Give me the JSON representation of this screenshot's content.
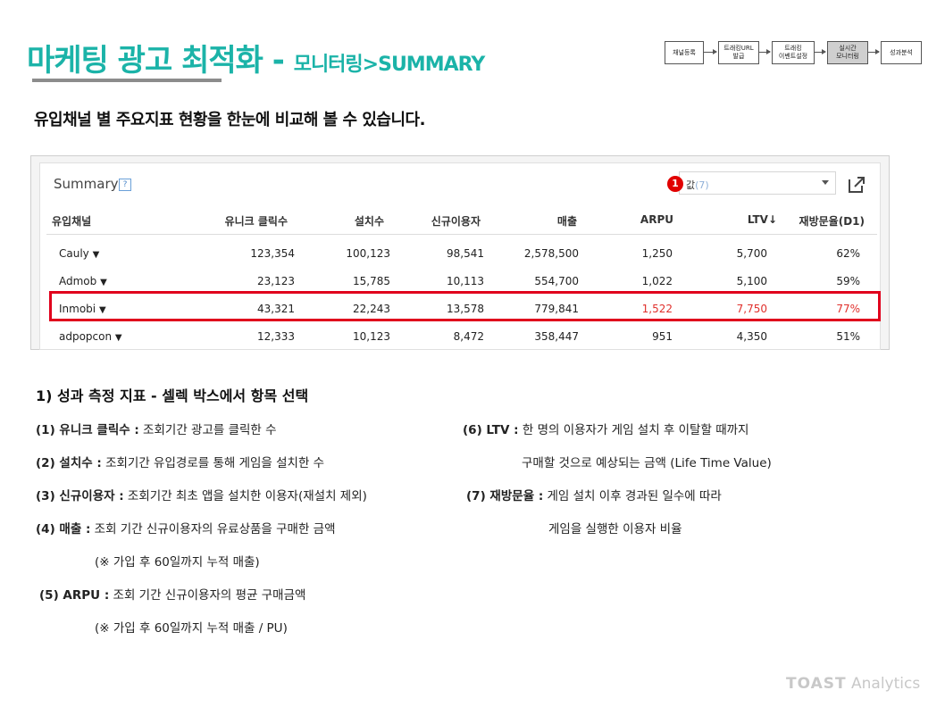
{
  "page": {
    "title_main": "마케팅 광고 최적화 - ",
    "title_sub": "모니터링>SUMMARY",
    "headline": "유입채널 별 주요지표 현황을 한눈에 비교해 볼 수 있습니다."
  },
  "flow": [
    {
      "line1": "채널등록",
      "line2": ""
    },
    {
      "line1": "트래킹URL",
      "line2": "발급"
    },
    {
      "line1": "트래킹",
      "line2": "이벤트설정"
    },
    {
      "line1": "실시간",
      "line2": "모니터링"
    },
    {
      "line1": "성과분석",
      "line2": ""
    }
  ],
  "summary": {
    "title": "Summary",
    "help": "?",
    "badge": "1",
    "select_value": "값",
    "select_count": "(7)",
    "columns": [
      "유입채널",
      "유니크 클릭수",
      "설치수",
      "신규이용자",
      "매출",
      "ARPU",
      "LTV↓",
      "재방문율(D1)"
    ],
    "rows": [
      {
        "channel": "Cauly",
        "clicks": "123,354",
        "installs": "100,123",
        "new_users": "98,541",
        "revenue": "2,578,500",
        "arpu": "1,250",
        "ltv": "5,700",
        "retention": "62%"
      },
      {
        "channel": "Admob",
        "clicks": "23,123",
        "installs": "15,785",
        "new_users": "10,113",
        "revenue": "554,700",
        "arpu": "1,022",
        "ltv": "5,100",
        "retention": "59%"
      },
      {
        "channel": "Inmobi",
        "clicks": "43,321",
        "installs": "22,243",
        "new_users": "13,578",
        "revenue": "779,841",
        "arpu": "1,522",
        "ltv": "7,750",
        "retention": "77%"
      },
      {
        "channel": "adpopcon",
        "clicks": "12,333",
        "installs": "10,123",
        "new_users": "8,472",
        "revenue": "358,447",
        "arpu": "951",
        "ltv": "4,350",
        "retention": "51%"
      }
    ],
    "caret": "▼"
  },
  "definitions": {
    "section_title": "1) 성과 측정 지표 - 셀렉 박스에서 항목 선택",
    "d1_term": "(1) 유니크 클릭수 :",
    "d1_desc": " 조회기간 광고를 클릭한 수",
    "d2_term": "(2) 설치수 :",
    "d2_desc": " 조회기간 유입경로를 통해 게임을 설치한 수",
    "d3_term": "(3) 신규이용자 :",
    "d3_desc": " 조회기간 최초 앱을 설치한 이용자(재설치 제외)",
    "d4_term": "(4) 매출 :",
    "d4_desc": " 조회 기간 신규이용자의 유료상품을 구매한 금액",
    "d4_note": "(※ 가입 후 60일까지 누적 매출)",
    "d5_term": "(5) ARPU :",
    "d5_desc": " 조회 기간 신규이용자의 평균 구매금액",
    "d5_note": "(※ 가입 후 60일까지 누적 매출 / PU)",
    "d6_term": "(6) LTV :",
    "d6_desc": " 한 명의 이용자가 게임 설치 후 이탈할 때까지",
    "d6_cont": "구매할 것으로 예상되는 금액 (Life Time Value)",
    "d7_term": "(7) 재방문율 :",
    "d7_desc": " 게임 설치 이후 경과된 일수에 따라",
    "d7_cont": "게임을 실행한 이용자 비율"
  },
  "brand": {
    "toast": "TOAST",
    "analytics": "Analytics"
  },
  "colors": {
    "accent": "#1bb3a8",
    "highlight": "#e0001c",
    "red_text": "#e0302c"
  }
}
